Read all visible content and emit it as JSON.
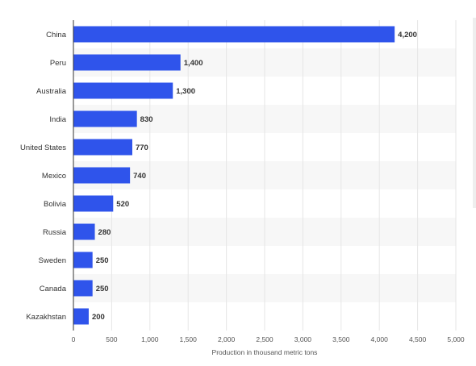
{
  "chart_data": {
    "type": "bar",
    "orientation": "horizontal",
    "categories": [
      "China",
      "Peru",
      "Australia",
      "India",
      "United States",
      "Mexico",
      "Bolivia",
      "Russia",
      "Sweden",
      "Canada",
      "Kazakhstan"
    ],
    "values": [
      4200,
      1400,
      1300,
      830,
      770,
      740,
      520,
      280,
      250,
      250,
      200
    ],
    "value_labels": [
      "4,200",
      "1,400",
      "1,300",
      "830",
      "770",
      "740",
      "520",
      "280",
      "250",
      "250",
      "200"
    ],
    "title": "",
    "xlabel": "Production in thousand metric tons",
    "ylabel": "",
    "xlim": [
      0,
      5000
    ],
    "xticks": [
      0,
      500,
      1000,
      1500,
      2000,
      2500,
      3000,
      3500,
      4000,
      4500,
      5000
    ],
    "xtick_labels": [
      "0",
      "500",
      "1,000",
      "1,500",
      "2,000",
      "2,500",
      "3,000",
      "3,500",
      "4,000",
      "4,500",
      "5,000"
    ],
    "grid": "vertical",
    "bar_color": "#2f54eb",
    "band_color": "#f7f7f7"
  }
}
